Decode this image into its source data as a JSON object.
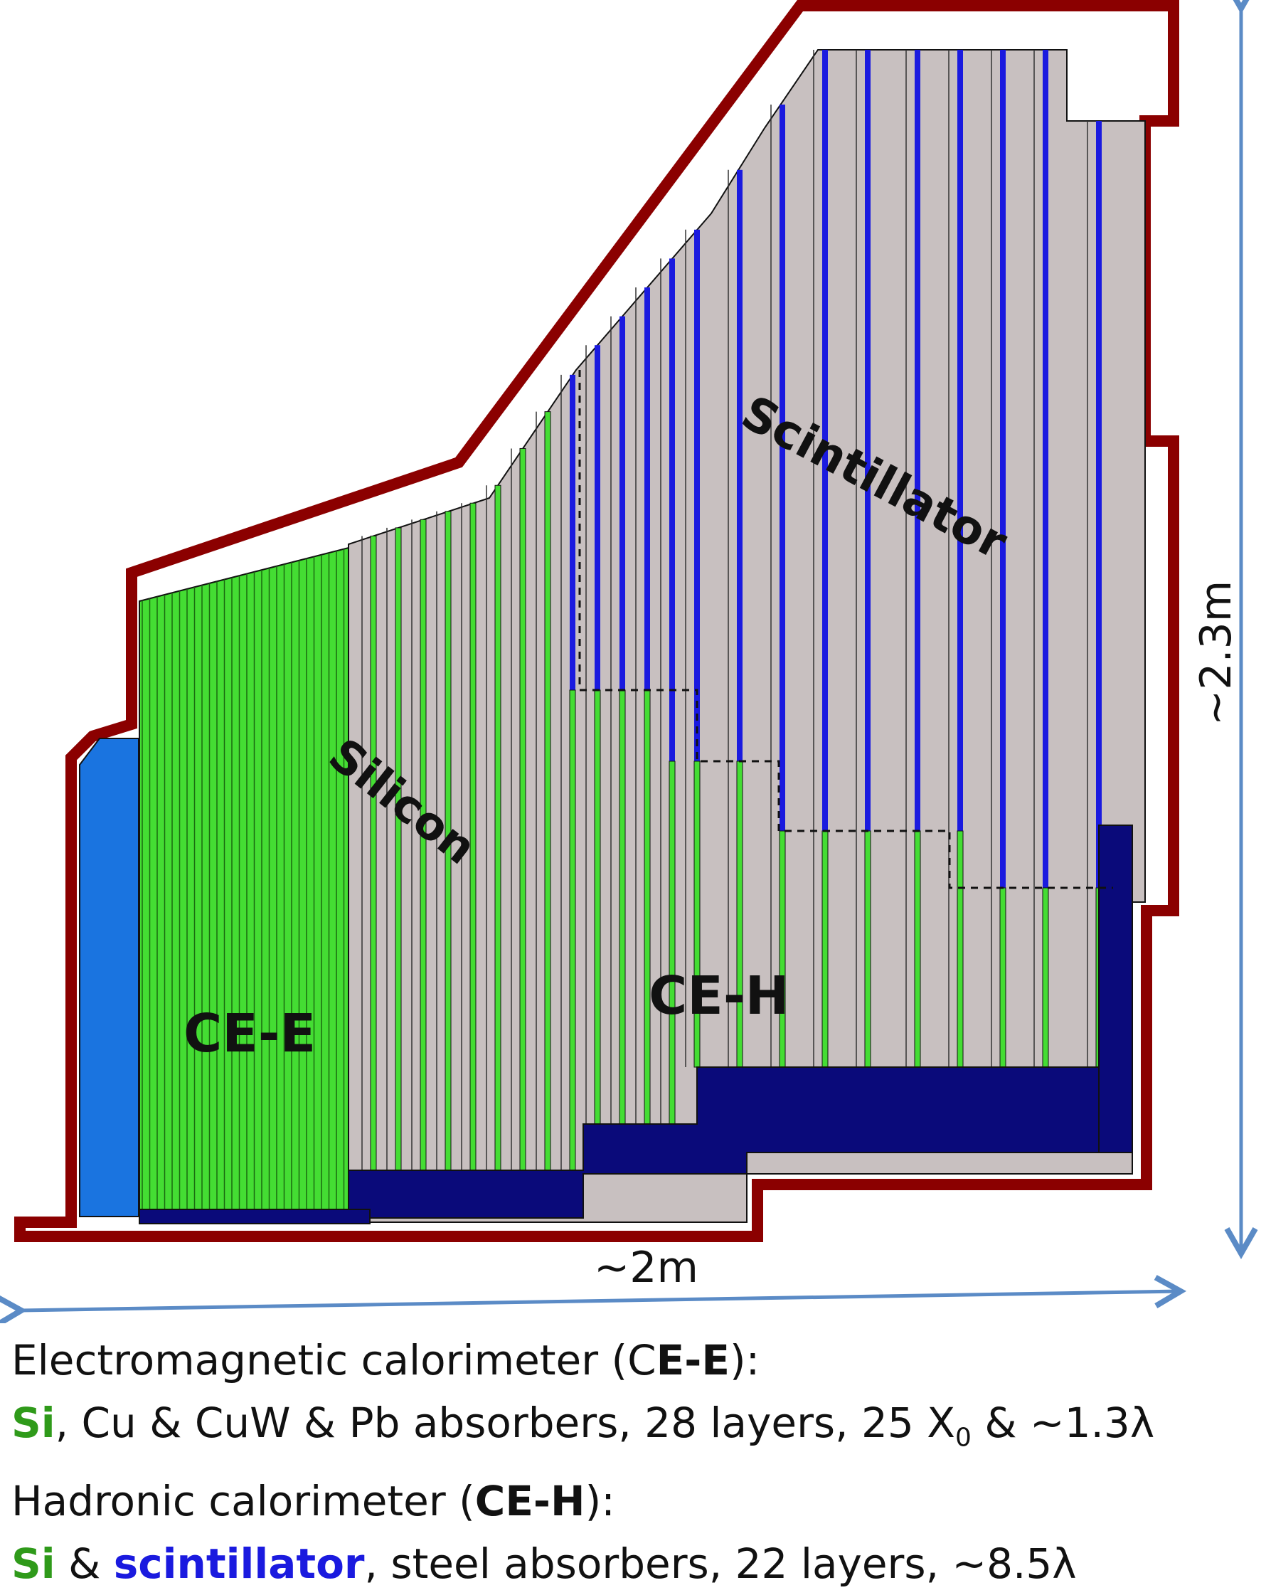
{
  "labels": {
    "silicon": "Silicon",
    "scintillator": "Scintillator",
    "ce_e": "CE-E",
    "ce_h": "CE-H",
    "width": "~2m",
    "height": "~2.3m"
  },
  "caption": {
    "line1": {
      "pre": "Electromagnetic calorimeter (C",
      "bold": "E-E",
      "post": "):"
    },
    "line2": {
      "si": "Si",
      "rest": ", Cu & CuW & Pb absorbers, 28 layers, 25 X",
      "sub": "0",
      "end": " & ~1.3λ"
    },
    "line3": {
      "pre": "Hadronic calorimeter (",
      "bold": "CE-H",
      "post": "):"
    },
    "line4": {
      "si": "Si",
      "amp": " & ",
      "scint": "scintillator",
      "rest": ", steel absorbers, 22 layers, ~8.5λ"
    }
  },
  "colors": {
    "frame": "#8b0000",
    "absorber": "#c8c0c0",
    "silicon": "#44dd33",
    "scintillator": "#1a1adf",
    "electronics": "#0a0a7a",
    "cooling": "#1a74e0",
    "arrow": "#5b8bc6"
  }
}
